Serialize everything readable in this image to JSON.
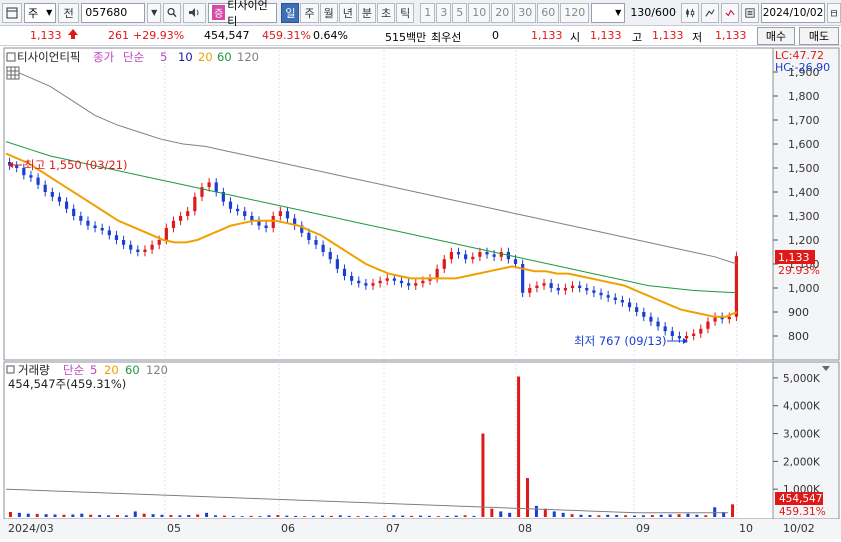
{
  "toolbar": {
    "market_label": "주",
    "prev_label": "전",
    "code": "057680",
    "jeung_badge": "증",
    "stock_name": "티사이언티",
    "periods": [
      "일",
      "주",
      "월",
      "년",
      "분",
      "초",
      "틱"
    ],
    "active_period": "일",
    "intervals": [
      "1",
      "3",
      "5",
      "10",
      "20",
      "30",
      "60",
      "120"
    ],
    "count": "130/600",
    "date": "2024/10/02"
  },
  "quote": {
    "price": "1,133",
    "change": "261",
    "change_pct": "+29.93%",
    "volume": "454,547",
    "volume_pct": "459.31%",
    "turnover": "0.64%",
    "amount": "515백만",
    "priority_label": "최우선",
    "priority_value": "0",
    "current": "1,133",
    "open_label": "시",
    "open": "1,133",
    "high_label": "고",
    "high": "1,133",
    "low_label": "저",
    "low": "1,133",
    "buy_label": "매수",
    "sell_label": "매도"
  },
  "price_legend": {
    "name": "티사이언티픽",
    "close_label": "종가",
    "simple_label": "단순",
    "ma": [
      "5",
      "10",
      "20",
      "60",
      "120"
    ]
  },
  "volume_legend": {
    "name": "거래량",
    "simple_label": "단순",
    "ma": [
      "5",
      "20",
      "60",
      "120"
    ],
    "value": "454,547주(459.31%)"
  },
  "price_annotations": {
    "lc": "LC:47.72",
    "hc": "HC:-26.90",
    "high_note": "최고 1,550 (03/21)",
    "low_note": "최저 767 (09/13)",
    "current_tag": "1,133",
    "current_pct": "29.93%"
  },
  "volume_annotations": {
    "current_tag": "454,547",
    "current_pct": "459.31%"
  },
  "colors": {
    "up": "#e01818",
    "down": "#1a3fd0",
    "ma5": "#c045c0",
    "ma10": "#1a1aa8",
    "ma20": "#f0a000",
    "ma60": "#1c9a3c",
    "ma120": "#808080"
  },
  "chart_data": [
    {
      "type": "candlestick",
      "title": "티사이언티픽",
      "ylim": [
        700,
        2000
      ],
      "y_ticks": [
        800,
        900,
        1000,
        1100,
        1200,
        1300,
        1400,
        1500,
        1600,
        1700,
        1800,
        1900
      ],
      "x_labels": [
        "2024/03",
        "05",
        "06",
        "07",
        "08",
        "09",
        "10"
      ],
      "closes": [
        1510,
        1500,
        1470,
        1460,
        1430,
        1400,
        1380,
        1360,
        1330,
        1300,
        1280,
        1260,
        1250,
        1240,
        1220,
        1200,
        1180,
        1160,
        1150,
        1160,
        1180,
        1200,
        1250,
        1280,
        1300,
        1320,
        1380,
        1420,
        1440,
        1400,
        1360,
        1330,
        1320,
        1300,
        1280,
        1260,
        1250,
        1300,
        1320,
        1290,
        1260,
        1230,
        1200,
        1180,
        1150,
        1120,
        1080,
        1050,
        1030,
        1020,
        1010,
        1020,
        1030,
        1040,
        1030,
        1020,
        1010,
        1020,
        1030,
        1040,
        1080,
        1120,
        1150,
        1140,
        1120,
        1130,
        1150,
        1140,
        1130,
        1150,
        1120,
        1100,
        980,
        1000,
        1010,
        1020,
        1000,
        990,
        1000,
        1010,
        1000,
        990,
        980,
        970,
        960,
        950,
        940,
        920,
        900,
        880,
        860,
        840,
        820,
        800,
        790,
        800,
        810,
        830,
        860,
        880,
        870,
        880,
        1133
      ],
      "ma20": [
        1560,
        1540,
        1520,
        1490,
        1460,
        1430,
        1400,
        1370,
        1340,
        1310,
        1280,
        1260,
        1240,
        1220,
        1200,
        1190,
        1190,
        1200,
        1220,
        1240,
        1260,
        1270,
        1280,
        1280,
        1280,
        1270,
        1260,
        1240,
        1220,
        1190,
        1160,
        1130,
        1100,
        1080,
        1060,
        1050,
        1040,
        1040,
        1040,
        1040,
        1040,
        1050,
        1060,
        1070,
        1080,
        1090,
        1080,
        1070,
        1070,
        1060,
        1060,
        1050,
        1040,
        1030,
        1020,
        1010,
        990,
        970,
        950,
        930,
        910,
        900,
        890,
        880,
        880,
        900
      ],
      "ma60": [
        1610,
        1580,
        1550,
        1530,
        1510,
        1490,
        1470,
        1450,
        1430,
        1410,
        1390,
        1370,
        1350,
        1330,
        1310,
        1290,
        1270,
        1250,
        1230,
        1210,
        1190,
        1170,
        1150,
        1130,
        1110,
        1090,
        1070,
        1050,
        1030,
        1010,
        1000,
        990,
        985,
        980
      ],
      "ma120": [
        1920,
        1880,
        1840,
        1780,
        1720,
        1680,
        1650,
        1620,
        1600,
        1590,
        1570,
        1550,
        1530,
        1510,
        1490,
        1470,
        1450,
        1430,
        1410,
        1390,
        1370,
        1350,
        1330,
        1310,
        1290,
        1270,
        1250,
        1230,
        1210,
        1190,
        1170,
        1150,
        1130,
        1100
      ],
      "high_point": {
        "label": "최고 1,550 (03/21)",
        "value": 1550
      },
      "low_point": {
        "label": "최저 767 (09/13)",
        "value": 767
      }
    },
    {
      "type": "bar",
      "title": "거래량",
      "ylim": [
        0,
        5500
      ],
      "y_ticks": [
        1000,
        2000,
        3000,
        4000,
        5000
      ],
      "y_tick_labels": [
        "1,000K",
        "2,000K",
        "3,000K",
        "4,000K",
        "5,000K"
      ],
      "volumes_k": [
        180,
        150,
        120,
        110,
        100,
        90,
        80,
        90,
        120,
        80,
        70,
        60,
        70,
        60,
        200,
        120,
        100,
        80,
        70,
        60,
        70,
        90,
        150,
        60,
        50,
        40,
        30,
        40,
        30,
        60,
        70,
        50,
        40,
        30,
        40,
        50,
        40,
        60,
        40,
        30,
        40,
        30,
        40,
        60,
        50,
        40,
        50,
        40,
        30,
        40,
        50,
        60,
        40,
        3000,
        300,
        200,
        150,
        5050,
        1400,
        400,
        300,
        200,
        150,
        100,
        80,
        70,
        60,
        80,
        70,
        60,
        50,
        60,
        70,
        80,
        90,
        100,
        120,
        80,
        60,
        350,
        180,
        455
      ]
    }
  ]
}
